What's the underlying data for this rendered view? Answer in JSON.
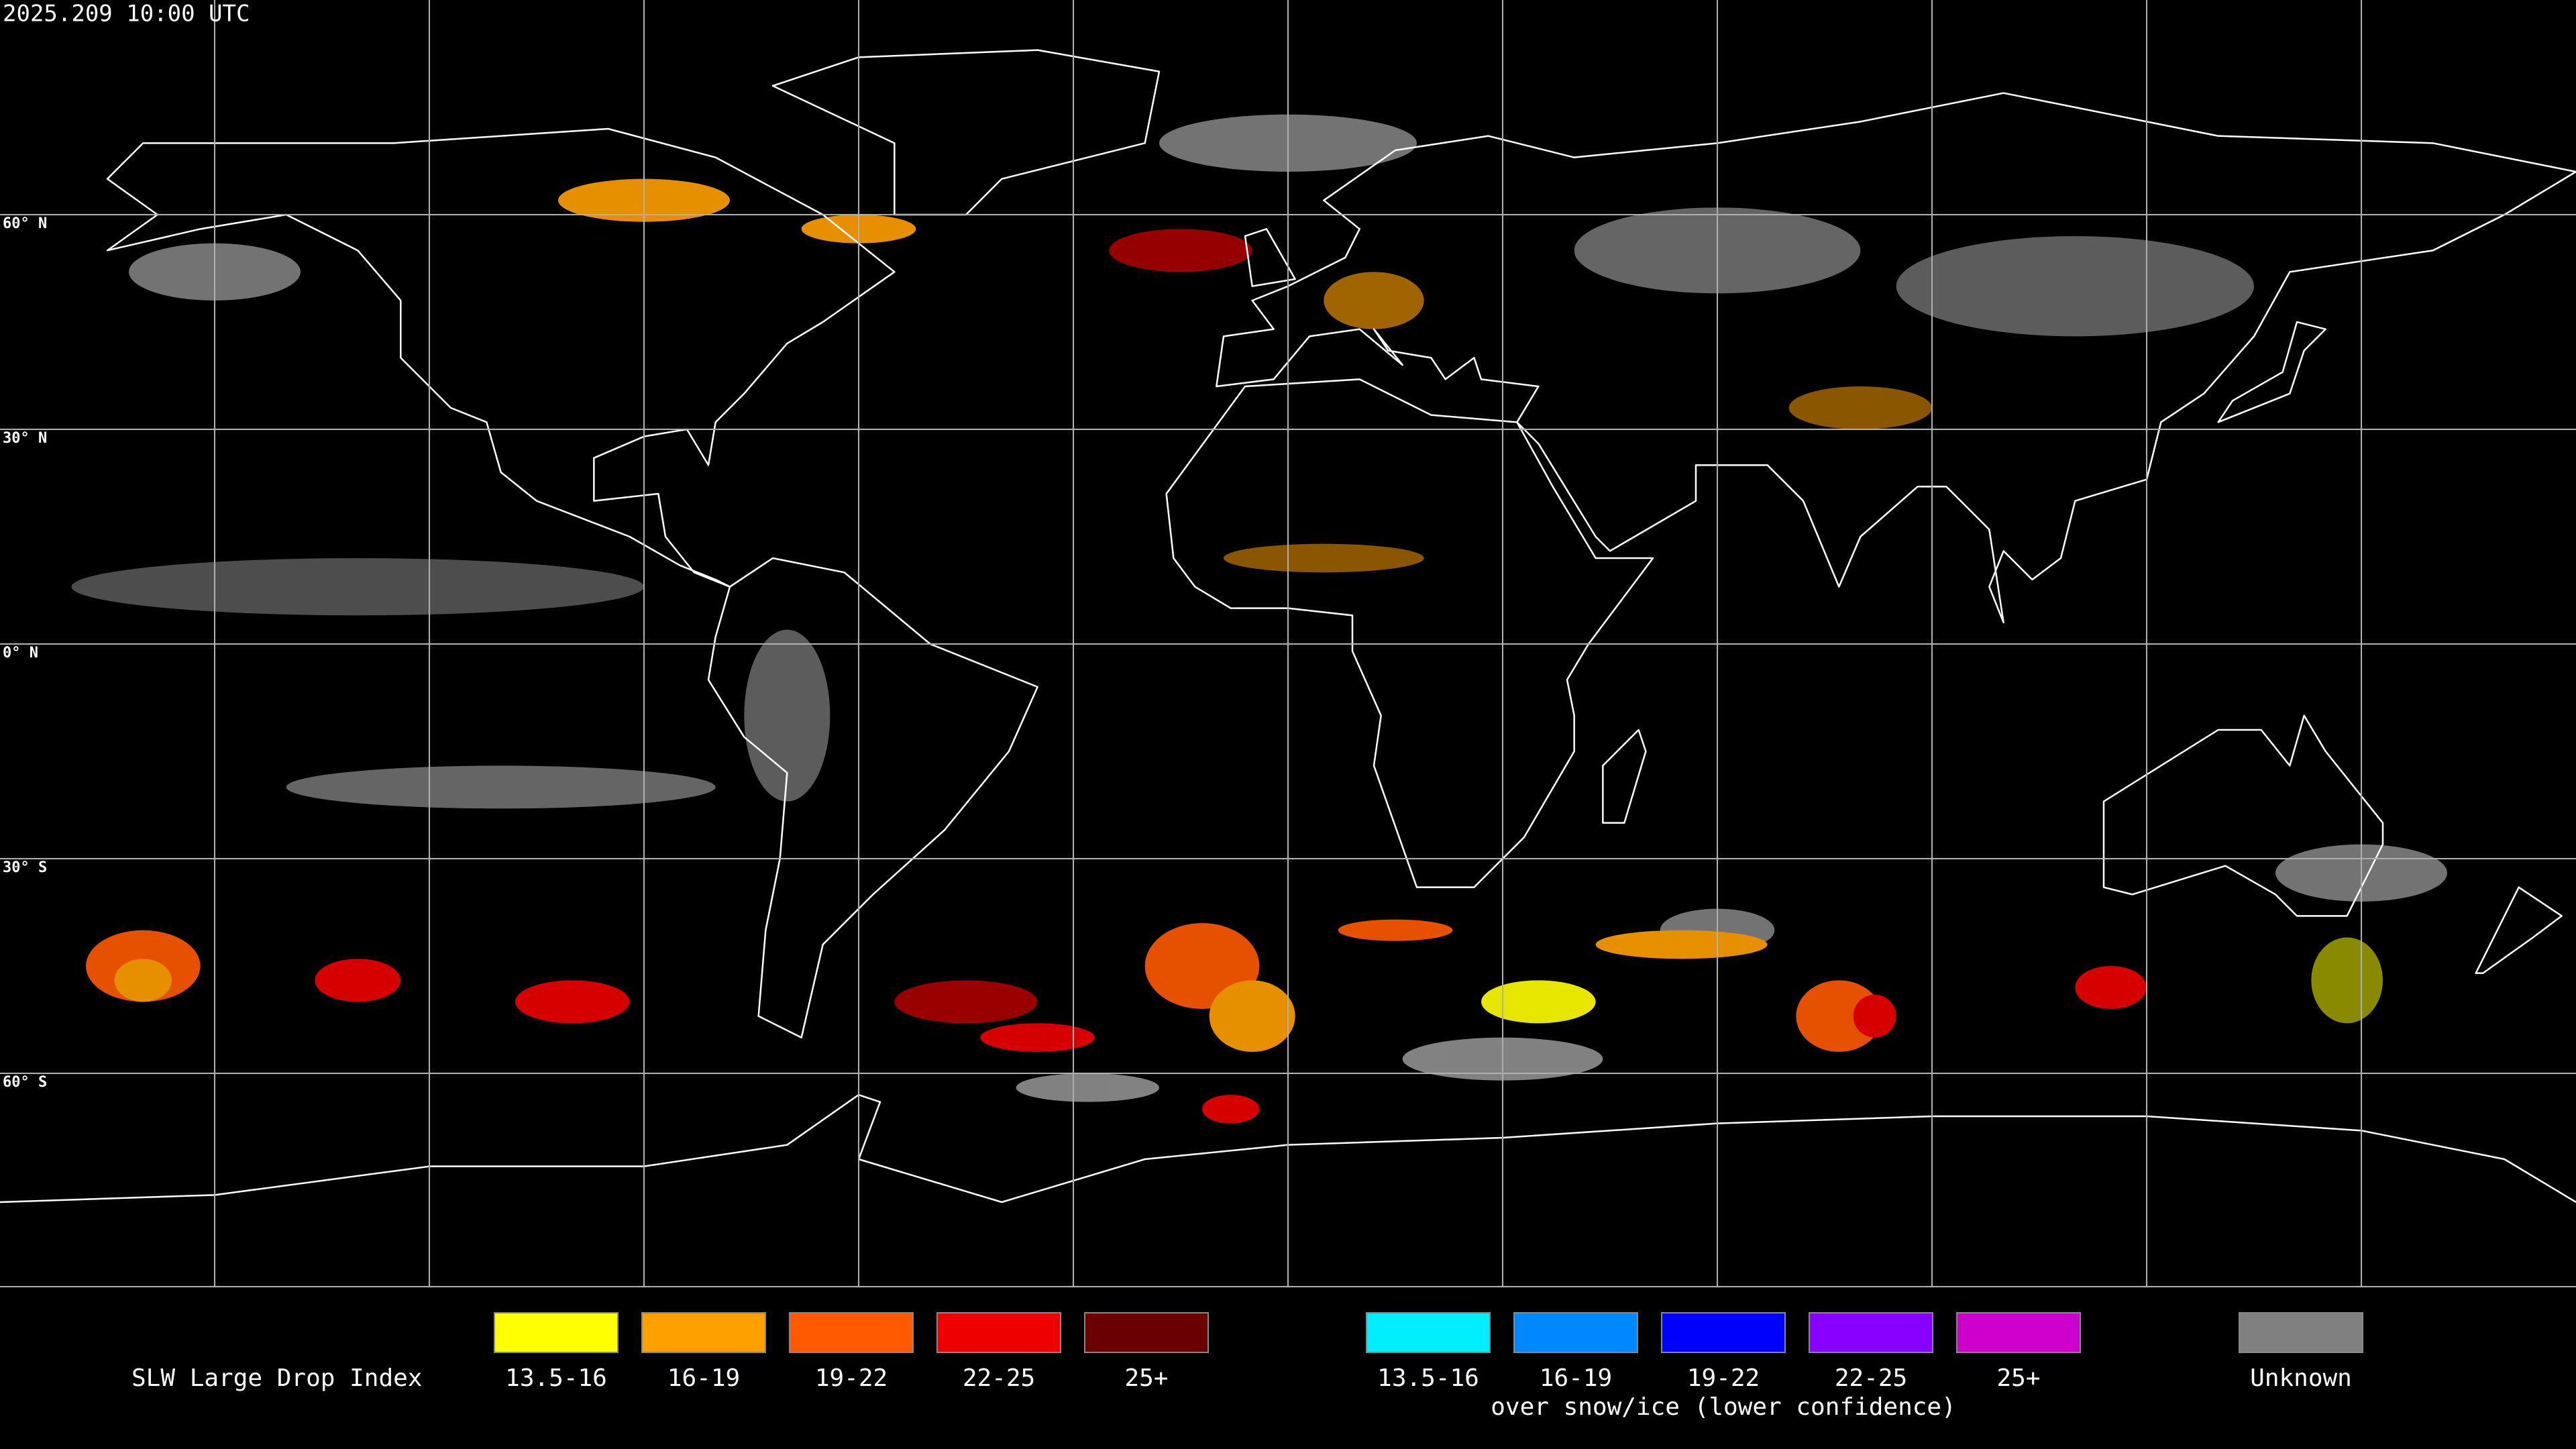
{
  "header": {
    "timestamp": "2025.209 10:00 UTC"
  },
  "map": {
    "lat_labels": [
      "60° N",
      "30° N",
      "0° N",
      "30° S",
      "60° S"
    ],
    "grid_color": "#b0b0b0"
  },
  "legend": {
    "title": "SLW Large Drop Index",
    "groups": [
      {
        "items": [
          {
            "label": "13.5-16",
            "color": "#ffff00"
          },
          {
            "label": "16-19",
            "color": "#ffa000"
          },
          {
            "label": "19-22",
            "color": "#ff5a00"
          },
          {
            "label": "22-25",
            "color": "#ee0000"
          },
          {
            "label": "25+",
            "color": "#6a0000"
          }
        ]
      },
      {
        "caption": "over snow/ice (lower confidence)",
        "items": [
          {
            "label": "13.5-16",
            "color": "#00eeff"
          },
          {
            "label": "16-19",
            "color": "#0088ff"
          },
          {
            "label": "19-22",
            "color": "#0000ff"
          },
          {
            "label": "22-25",
            "color": "#8800ff"
          },
          {
            "label": "25+",
            "color": "#cc00cc"
          }
        ]
      },
      {
        "items": [
          {
            "label": "Unknown",
            "color": "#808080"
          }
        ]
      }
    ]
  }
}
